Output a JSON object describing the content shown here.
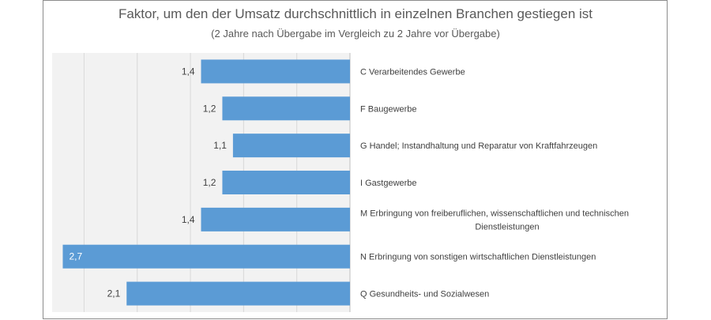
{
  "chart_data": {
    "type": "bar",
    "orientation": "horizontal",
    "direction": "right-to-left",
    "title": "Faktor, um den der Umsatz durchschnittlich in einzelnen Branchen gestiegen ist",
    "subtitle": "(2 Jahre nach Übergabe im Vergleich zu 2 Jahre vor Übergabe)",
    "categories": [
      [
        "C Verarbeitendes Gewerbe"
      ],
      [
        "F Baugewerbe"
      ],
      [
        "G Handel; Instandhaltung und Reparatur von Kraftfahrzeugen"
      ],
      [
        "I Gastgewerbe"
      ],
      [
        "M Erbringung von freiberuflichen, wissenschaftlichen und technischen",
        "Dienstleistungen"
      ],
      [
        "N Erbringung von sonstigen wirtschaftlichen Dienstleistungen"
      ],
      [
        "Q Gesundheits- und Sozialwesen"
      ]
    ],
    "values": [
      1.4,
      1.2,
      1.1,
      1.2,
      1.4,
      2.7,
      2.1
    ],
    "value_labels": [
      "1,4",
      "1,2",
      "1,1",
      "1,2",
      "1,4",
      "2,7",
      "2,1"
    ],
    "xlim": [
      0,
      2.8
    ],
    "grid": true,
    "colors": {
      "bar": "#5b9bd5",
      "plot_bg": "#f2f2f2",
      "grid": "#d9d9d9",
      "label_inside": "#ffffff",
      "label_outside": "#404040"
    }
  }
}
